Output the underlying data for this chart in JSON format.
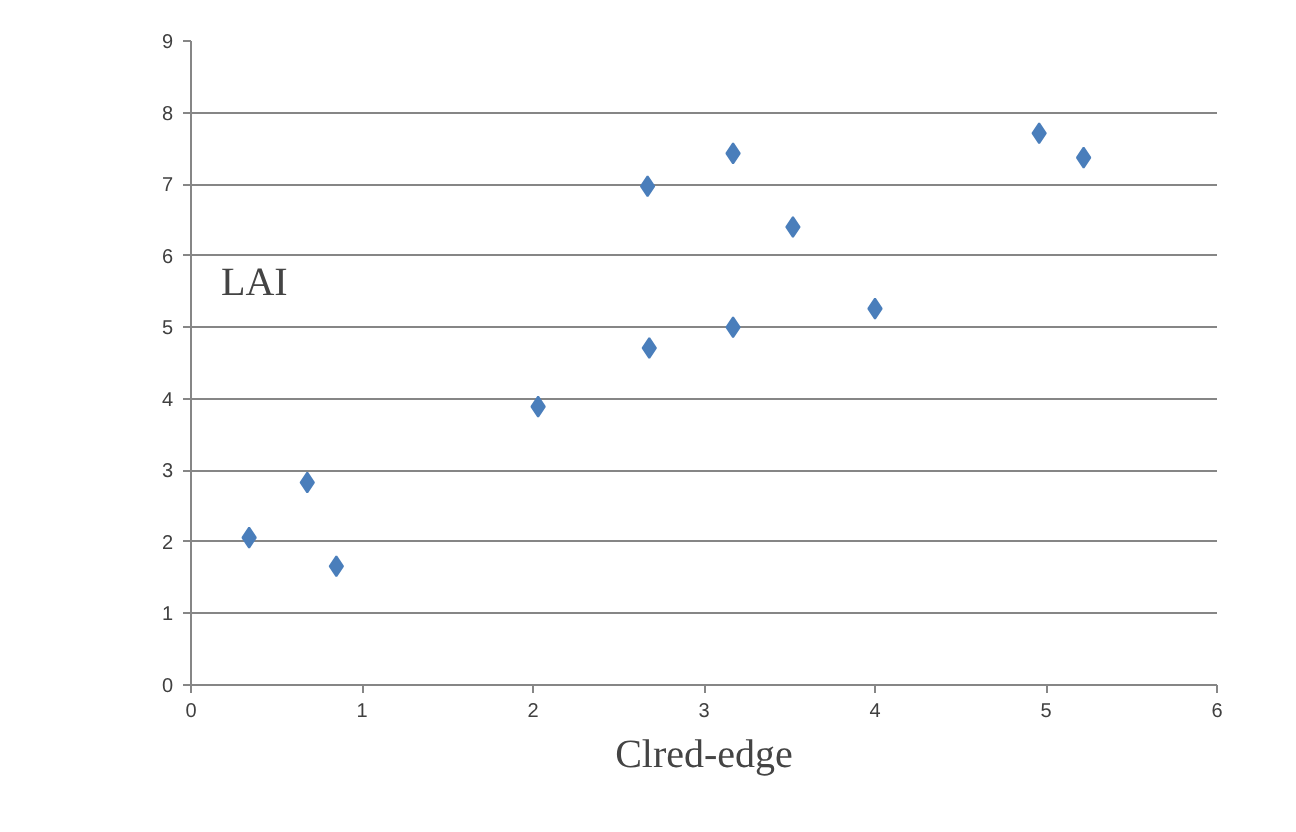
{
  "chart_data": {
    "type": "scatter",
    "xlabel": "Clred-edge",
    "ylabel": "LAI",
    "x": [
      0.34,
      0.68,
      0.85,
      2.03,
      2.67,
      2.68,
      3.17,
      3.17,
      3.52,
      4.0,
      4.96,
      5.22
    ],
    "values": [
      2.06,
      2.83,
      1.66,
      3.89,
      6.97,
      4.71,
      7.43,
      5.0,
      6.4,
      5.26,
      7.71,
      7.37
    ],
    "color": "#4a7ebb",
    "marker": "diamond",
    "grid": "y",
    "xlim": [
      0,
      6
    ],
    "xticks": [
      0,
      1,
      2,
      3,
      4,
      5,
      6
    ],
    "ylim": [
      0,
      9
    ],
    "yticks": [
      0,
      1,
      2,
      3,
      4,
      5,
      6,
      7,
      8,
      9
    ]
  }
}
